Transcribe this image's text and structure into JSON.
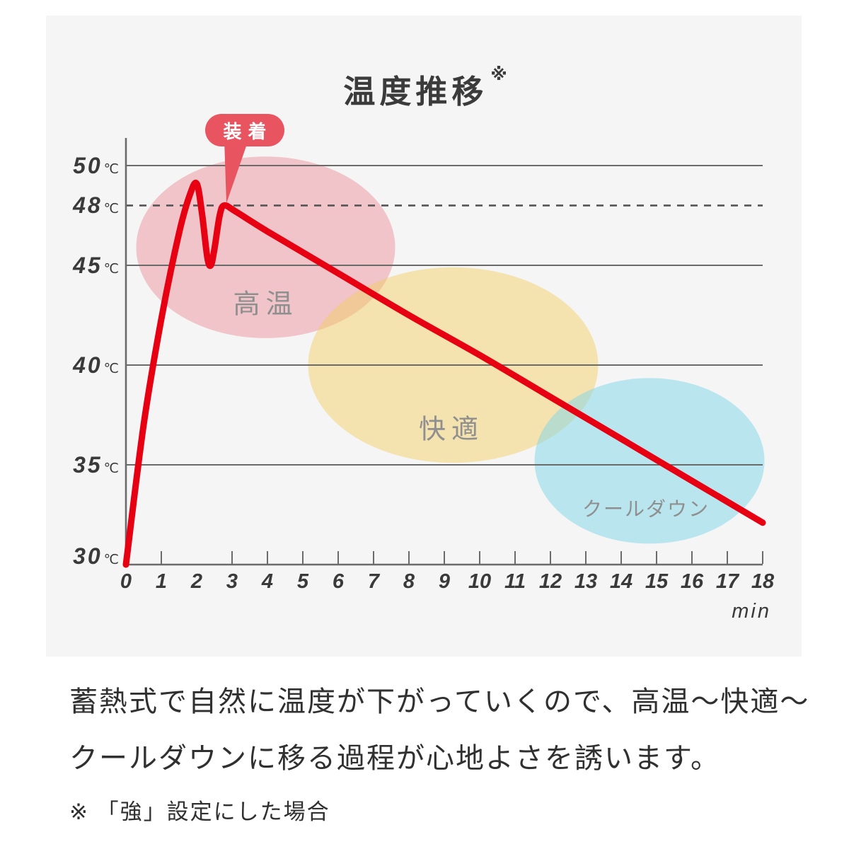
{
  "colors": {
    "page_bg": "#ffffff",
    "panel_bg": "#f5f5f6",
    "curve_red": "#e60012",
    "badge_red": "#e8545f",
    "grid_gray": "#6b6b6b",
    "axis_text": "#3a3a3a",
    "zone_label_gray": "#8f8f8f",
    "body_text": "#303030"
  },
  "title": {
    "text": "温度推移",
    "note_mark": "※"
  },
  "badge": {
    "label": "装着",
    "color": "#e8545f",
    "text_color": "#ffffff"
  },
  "chart_data": {
    "type": "line",
    "title": "温度推移",
    "xlabel": "min",
    "y_unit": "℃",
    "xlim": [
      0,
      18
    ],
    "ylim": [
      30,
      51.5
    ],
    "grid": true,
    "x_tick_labels": [
      "0",
      "1",
      "2",
      "3",
      "4",
      "5",
      "6",
      "7",
      "8",
      "9",
      "10",
      "11",
      "12",
      "13",
      "14",
      "15",
      "16",
      "17",
      "18"
    ],
    "x_tick_marks": [
      1,
      3,
      4,
      5,
      6,
      7,
      8,
      9,
      10,
      11,
      12,
      13,
      14,
      15,
      16,
      17,
      18
    ],
    "y_gridlines": [
      {
        "label": "50",
        "value": 50,
        "style": "solid"
      },
      {
        "label": "48",
        "value": 48,
        "style": "dashed"
      },
      {
        "label": "45",
        "value": 45,
        "style": "solid"
      },
      {
        "label": "40",
        "value": 40,
        "style": "solid"
      },
      {
        "label": "35",
        "value": 35,
        "style": "solid"
      },
      {
        "label": "30",
        "value": 30,
        "style": "axis"
      }
    ],
    "series": [
      {
        "name": "温度",
        "color": "#e60012",
        "points": [
          [
            0,
            30
          ],
          [
            0.5,
            37
          ],
          [
            1,
            42.3
          ],
          [
            1.5,
            46.6
          ],
          [
            1.8,
            48.5
          ],
          [
            2,
            49.1
          ],
          [
            2.15,
            47.6
          ],
          [
            2.3,
            45.4
          ],
          [
            2.4,
            45
          ],
          [
            2.5,
            45.8
          ],
          [
            2.65,
            47.5
          ],
          [
            2.78,
            48
          ],
          [
            3.1,
            47.7
          ],
          [
            4,
            46.7
          ],
          [
            6,
            44.6
          ],
          [
            8,
            42.5
          ],
          [
            10,
            40.5
          ],
          [
            12,
            38.4
          ],
          [
            14,
            36.3
          ],
          [
            16,
            34.2
          ],
          [
            18,
            32.1
          ]
        ]
      }
    ],
    "zones": [
      {
        "label": "高温",
        "fill": "rgba(235,148,153,0.5)",
        "center": [
          3.95,
          45.9
        ],
        "radius": [
          3.66,
          4.55
        ],
        "label_pos": [
          3.95,
          43.2
        ]
      },
      {
        "label": "快適",
        "fill": "rgba(242,203,95,0.47)",
        "center": [
          9.25,
          40.0
        ],
        "radius": [
          4.1,
          4.9
        ],
        "label_pos": [
          9.2,
          36.9
        ]
      },
      {
        "label": "クールダウン",
        "fill": "rgba(130,215,232,0.52)",
        "center": [
          14.8,
          35.2
        ],
        "radius": [
          3.25,
          4.15
        ],
        "label_pos": [
          14.7,
          32.85
        ]
      }
    ],
    "annotation": {
      "label": "装着",
      "x": 2.78,
      "y": 48
    }
  },
  "description": {
    "line1": "蓄熱式で自然に温度が下がっていくので、高温〜快適〜",
    "line2": "クールダウンに移る過程が心地よさを誘います。",
    "note": "※ 「強」設定にした場合"
  }
}
